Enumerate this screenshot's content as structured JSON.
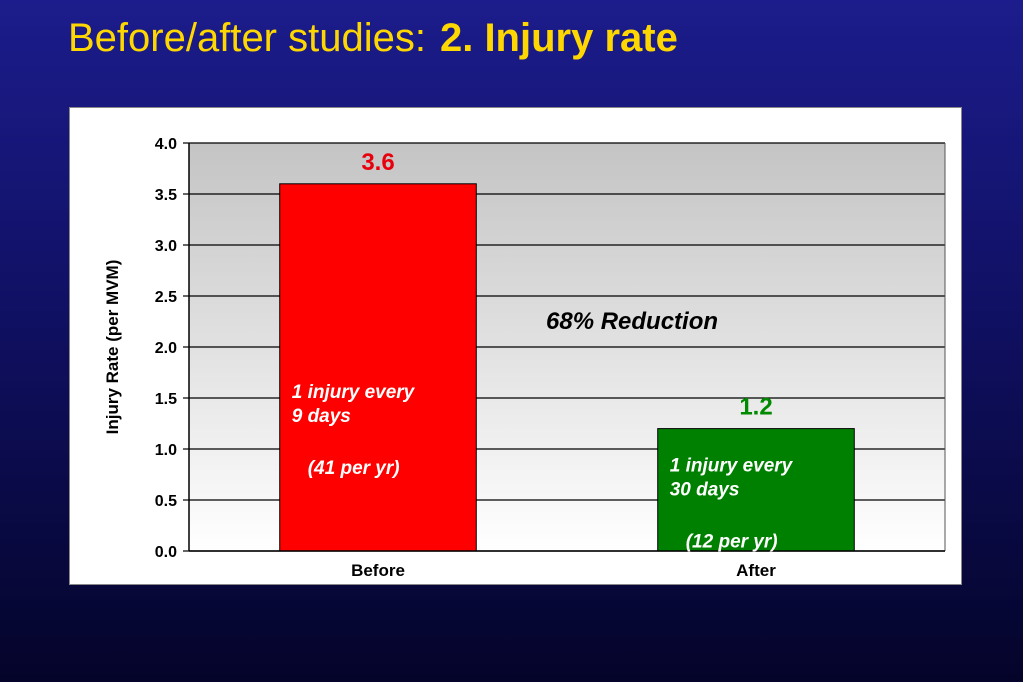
{
  "slide": {
    "title_prefix": "Before/after studies:",
    "title_bold": "2. Injury rate"
  },
  "chart_data": {
    "type": "bar",
    "categories": [
      "Before",
      "After"
    ],
    "values": [
      3.6,
      1.2
    ],
    "value_labels": [
      "3.6",
      "1.2"
    ],
    "ylabel": "Injury Rate (per MVM)",
    "xlabel": "",
    "ylim": [
      0,
      4.0
    ],
    "yticks": [
      0.0,
      0.5,
      1.0,
      1.5,
      2.0,
      2.5,
      3.0,
      3.5,
      4.0
    ],
    "ytick_labels": [
      "0.0",
      "0.5",
      "1.0",
      "1.5",
      "2.0",
      "2.5",
      "3.0",
      "3.5",
      "4.0"
    ],
    "grid": true,
    "bar_colors": [
      "#ff0000",
      "#008000"
    ],
    "value_label_colors": [
      "#e8000c",
      "#008a00"
    ],
    "bar_notes": [
      [
        "1 injury every",
        "9 days",
        "(41 per  yr)"
      ],
      [
        "1 injury every",
        "30 days",
        "(12 per  yr)"
      ]
    ],
    "annotation": "68% Reduction"
  }
}
